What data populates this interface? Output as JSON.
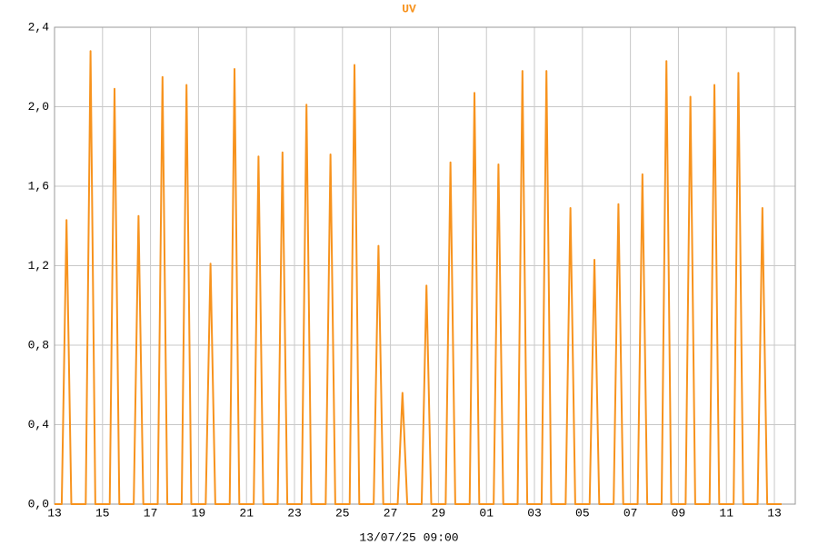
{
  "chart_data": {
    "type": "line",
    "title": "UV",
    "x_label": "13/07/25 09:00",
    "color": "#f7931e",
    "grid": true,
    "xlim": [
      0,
      30.87
    ],
    "ylim": [
      0,
      2.4
    ],
    "xticks": [
      {
        "value": 0,
        "label": "13"
      },
      {
        "value": 2,
        "label": "15"
      },
      {
        "value": 4,
        "label": "17"
      },
      {
        "value": 6,
        "label": "19"
      },
      {
        "value": 8,
        "label": "21"
      },
      {
        "value": 10,
        "label": "23"
      },
      {
        "value": 12,
        "label": "25"
      },
      {
        "value": 14,
        "label": "27"
      },
      {
        "value": 16,
        "label": "29"
      },
      {
        "value": 18,
        "label": "01"
      },
      {
        "value": 20,
        "label": "03"
      },
      {
        "value": 22,
        "label": "05"
      },
      {
        "value": 24,
        "label": "07"
      },
      {
        "value": 26,
        "label": "09"
      },
      {
        "value": 28,
        "label": "11"
      },
      {
        "value": 30,
        "label": "13"
      }
    ],
    "yticks": [
      {
        "value": 0,
        "label": "0,0"
      },
      {
        "value": 0.4,
        "label": "0,4"
      },
      {
        "value": 0.8,
        "label": "0,8"
      },
      {
        "value": 1.2,
        "label": "1,2"
      },
      {
        "value": 1.6,
        "label": "1,6"
      },
      {
        "value": 2.0,
        "label": "2,0"
      },
      {
        "value": 2.4,
        "label": "2,4"
      }
    ],
    "x": [
      0,
      0.3,
      0.5,
      0.7,
      1.3,
      1.5,
      1.7,
      2.3,
      2.5,
      2.7,
      3.3,
      3.5,
      3.7,
      4.3,
      4.5,
      4.7,
      5.3,
      5.5,
      5.7,
      6.3,
      6.5,
      6.7,
      7.3,
      7.5,
      7.7,
      8.3,
      8.5,
      8.7,
      9.3,
      9.5,
      9.7,
      10.3,
      10.5,
      10.7,
      11.3,
      11.5,
      11.7,
      12.3,
      12.5,
      12.7,
      13.3,
      13.5,
      13.7,
      14.3,
      14.5,
      14.7,
      15.3,
      15.5,
      15.7,
      16.3,
      16.5,
      16.7,
      17.3,
      17.5,
      17.7,
      18.3,
      18.5,
      18.7,
      19.3,
      19.5,
      19.7,
      20.3,
      20.5,
      20.7,
      21.3,
      21.5,
      21.7,
      22.3,
      22.5,
      22.7,
      23.3,
      23.5,
      23.7,
      24.3,
      24.5,
      24.7,
      25.3,
      25.5,
      25.7,
      26.3,
      26.5,
      26.7,
      27.3,
      27.5,
      27.7,
      28.3,
      28.5,
      28.7,
      29.3,
      29.5,
      29.7,
      30.3
    ],
    "values": [
      0,
      0,
      1.43,
      0,
      0,
      2.28,
      0,
      0,
      2.09,
      0,
      0,
      1.45,
      0,
      0,
      2.15,
      0,
      0,
      2.11,
      0,
      0,
      1.21,
      0,
      0,
      2.19,
      0,
      0,
      1.75,
      0,
      0,
      1.77,
      0,
      0,
      2.01,
      0,
      0,
      1.76,
      0,
      0,
      2.21,
      0,
      0,
      1.3,
      0,
      0,
      0.56,
      0,
      0,
      1.1,
      0,
      0,
      1.72,
      0,
      0,
      2.07,
      0,
      0,
      1.71,
      0,
      0,
      2.18,
      0,
      0,
      2.18,
      0,
      0,
      1.49,
      0,
      0,
      1.23,
      0,
      0,
      1.51,
      0,
      0,
      1.66,
      0,
      0,
      2.23,
      0,
      0,
      2.05,
      0,
      0,
      2.11,
      0,
      0,
      2.17,
      0,
      0,
      1.49,
      0,
      0
    ]
  }
}
